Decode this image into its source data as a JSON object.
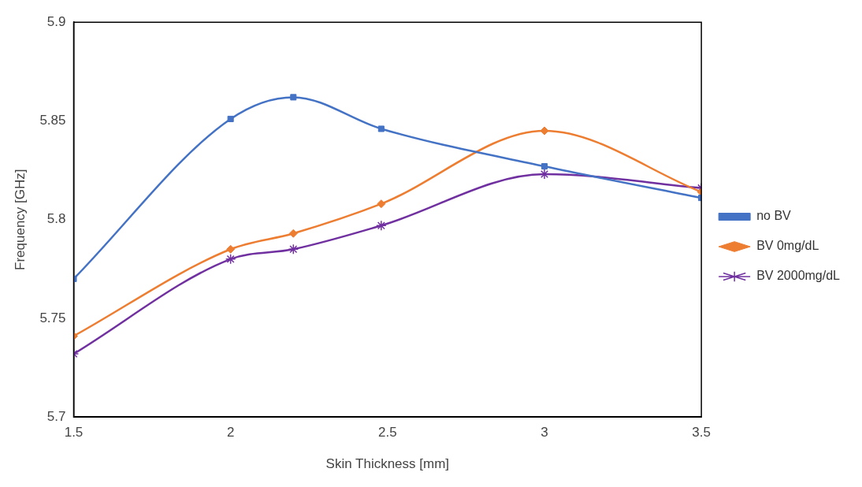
{
  "chart_data": {
    "type": "line",
    "xlabel": "Skin Thickness [mm]",
    "ylabel": "Frequency [GHz]",
    "xlim": [
      1.5,
      3.5
    ],
    "xticks": [
      1.5,
      2,
      2.5,
      3,
      3.5
    ],
    "ylim": [
      5.7,
      5.9
    ],
    "yticks": [
      5.7,
      5.75,
      5.8,
      5.85,
      5.9
    ],
    "grid": false,
    "legend": "right",
    "line_style": "solid",
    "x": [
      1.5,
      2,
      2.2,
      2.48,
      3,
      3.5
    ],
    "series": [
      {
        "name": "no BV",
        "color": "#4472c4",
        "marker": "square",
        "values": [
          5.77,
          5.851,
          5.862,
          5.846,
          5.827,
          5.811
        ]
      },
      {
        "name": "BV 0mg/dL",
        "color": "#ed7d31",
        "marker": "diamond",
        "values": [
          5.741,
          5.785,
          5.793,
          5.808,
          5.845,
          5.814
        ]
      },
      {
        "name": "BV 2000mg/dL",
        "color": "#7030a0",
        "marker": "cross",
        "values": [
          5.732,
          5.78,
          5.785,
          5.797,
          5.823,
          5.816
        ]
      }
    ]
  }
}
